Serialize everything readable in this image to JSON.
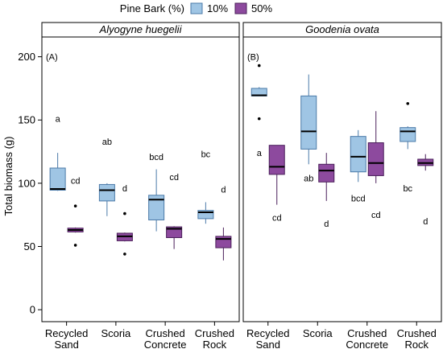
{
  "chart_data": {
    "type": "box",
    "ylabel": "Total biomass (g)",
    "ylim": [
      -5,
      215
    ],
    "yticks": [
      0,
      50,
      100,
      150,
      200
    ],
    "legend": {
      "title": "Pine Bark (%)",
      "placement": "top",
      "entries": [
        {
          "label": "10%",
          "color": "#9fc5e4"
        },
        {
          "label": "50%",
          "color": "#8d4a9e"
        }
      ]
    },
    "categories": [
      [
        "Recycled",
        "Sand"
      ],
      [
        "Scoria"
      ],
      [
        "Crushed",
        "Concrete"
      ],
      [
        "Crushed",
        "Rock"
      ]
    ],
    "panels": [
      {
        "title": "Alyogyne huegelii",
        "tag": "(A)",
        "groups": [
          {
            "category": "Recycled Sand",
            "series": "10%",
            "whisker_low": 94,
            "q1": 94.5,
            "median": 95.5,
            "q3": 112,
            "whisker_high": 124,
            "outliers": [],
            "letter": "a",
            "letter_y": 151
          },
          {
            "category": "Recycled Sand",
            "series": "50%",
            "whisker_low": 61,
            "q1": 61.5,
            "median": 63,
            "q3": 64.5,
            "whisker_high": 65,
            "outliers": [
              82,
              51
            ],
            "letter": "cd",
            "letter_y": 102
          },
          {
            "category": "Scoria",
            "series": "10%",
            "whisker_low": 74,
            "q1": 86,
            "median": 94.5,
            "q3": 99,
            "whisker_high": 100,
            "outliers": [],
            "letter": "ab",
            "letter_y": 133
          },
          {
            "category": "Scoria",
            "series": "50%",
            "whisker_low": 54,
            "q1": 54.5,
            "median": 58,
            "q3": 60.5,
            "whisker_high": 61,
            "outliers": [
              76,
              44
            ],
            "letter": "d",
            "letter_y": 96
          },
          {
            "category": "Crushed Concrete",
            "series": "10%",
            "whisker_low": 62,
            "q1": 71,
            "median": 87,
            "q3": 90.5,
            "whisker_high": 111,
            "outliers": [],
            "letter": "bcd",
            "letter_y": 121
          },
          {
            "category": "Crushed Concrete",
            "series": "50%",
            "whisker_low": 48,
            "q1": 57,
            "median": 64,
            "q3": 65.5,
            "whisker_high": 66,
            "outliers": [],
            "letter": "cd",
            "letter_y": 105
          },
          {
            "category": "Crushed Rock",
            "series": "10%",
            "whisker_low": 68,
            "q1": 72,
            "median": 77,
            "q3": 78.5,
            "whisker_high": 85,
            "outliers": [],
            "letter": "bc",
            "letter_y": 123
          },
          {
            "category": "Crushed Rock",
            "series": "50%",
            "whisker_low": 39,
            "q1": 49,
            "median": 56,
            "q3": 58,
            "whisker_high": 65,
            "outliers": [],
            "letter": "d",
            "letter_y": 95
          }
        ]
      },
      {
        "title": "Goodenia ovata",
        "tag": "(B)",
        "groups": [
          {
            "category": "Recycled Sand",
            "series": "10%",
            "whisker_low": 169,
            "q1": 169,
            "median": 169.5,
            "q3": 175,
            "whisker_high": 176,
            "outliers": [
              193,
              151
            ],
            "letter": "a",
            "letter_y": 124
          },
          {
            "category": "Recycled Sand",
            "series": "50%",
            "whisker_low": 83,
            "q1": 107,
            "median": 113,
            "q3": 130,
            "whisker_high": 130,
            "outliers": [],
            "letter": "cd",
            "letter_y": 73
          },
          {
            "category": "Scoria",
            "series": "10%",
            "whisker_low": 115,
            "q1": 127,
            "median": 141,
            "q3": 169,
            "whisker_high": 186,
            "outliers": [],
            "letter": "ab",
            "letter_y": 104
          },
          {
            "category": "Scoria",
            "series": "50%",
            "whisker_low": 86,
            "q1": 101,
            "median": 110,
            "q3": 115,
            "whisker_high": 124,
            "outliers": [],
            "letter": "d",
            "letter_y": 68
          },
          {
            "category": "Crushed Concrete",
            "series": "10%",
            "whisker_low": 101,
            "q1": 109,
            "median": 121,
            "q3": 137,
            "whisker_high": 142,
            "outliers": [],
            "letter": "bcd",
            "letter_y": 88
          },
          {
            "category": "Crushed Concrete",
            "series": "50%",
            "whisker_low": 100,
            "q1": 106,
            "median": 116,
            "q3": 132,
            "whisker_high": 157,
            "outliers": [],
            "letter": "cd",
            "letter_y": 75
          },
          {
            "category": "Crushed Rock",
            "series": "10%",
            "whisker_low": 127,
            "q1": 133,
            "median": 141,
            "q3": 144,
            "whisker_high": 145,
            "outliers": [
              163
            ],
            "letter": "bc",
            "letter_y": 96
          },
          {
            "category": "Crushed Rock",
            "series": "50%",
            "whisker_low": 110,
            "q1": 114,
            "median": 116,
            "q3": 119,
            "whisker_high": 123,
            "outliers": [],
            "letter": "d",
            "letter_y": 70
          }
        ]
      }
    ]
  }
}
